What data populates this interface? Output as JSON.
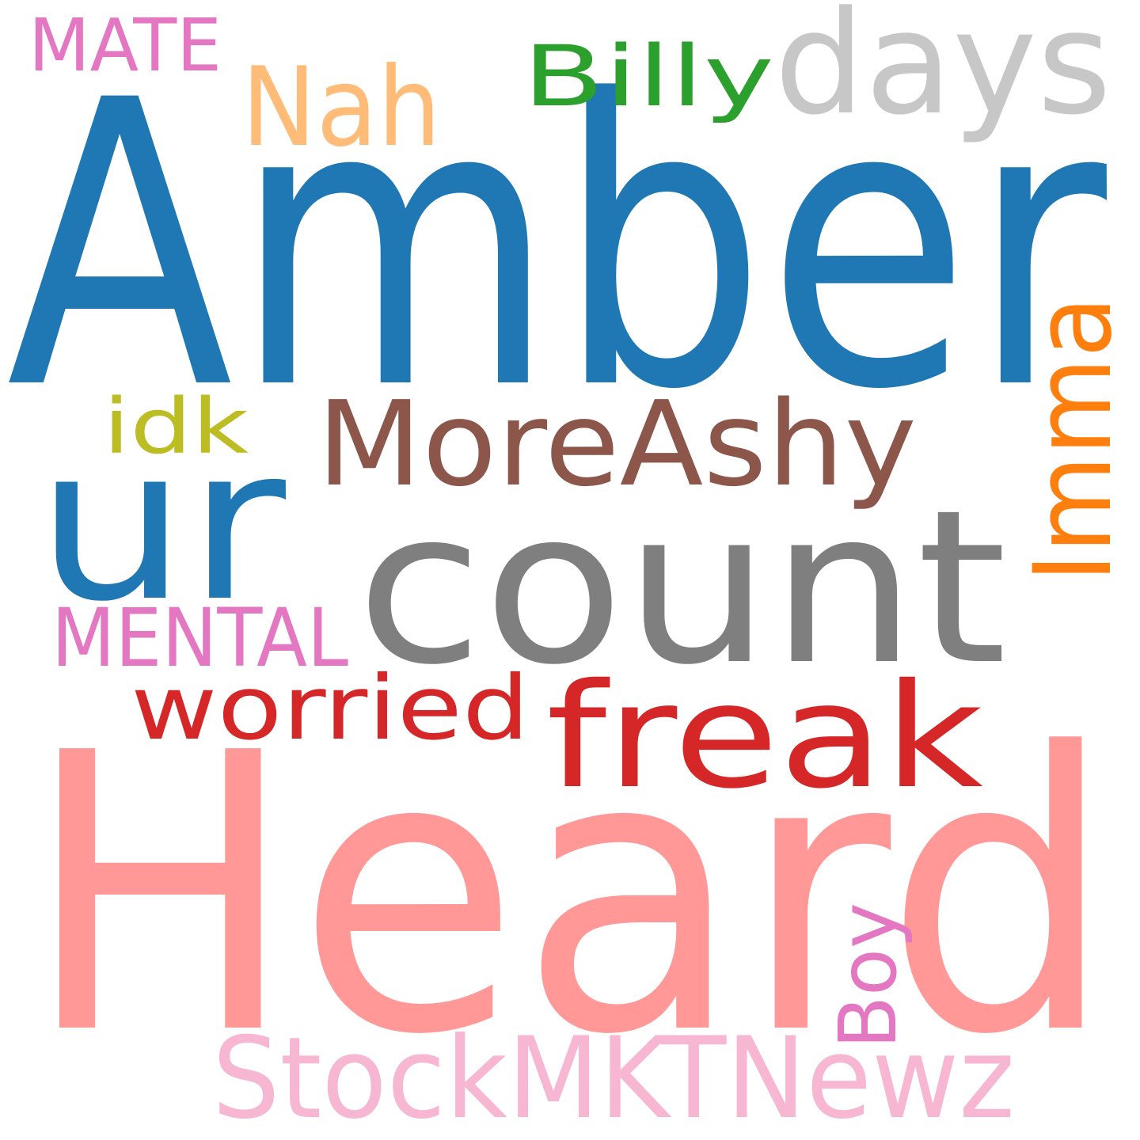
{
  "words": [
    {
      "text": "Amber",
      "color": "#1f77b4"
    },
    {
      "text": "Heard",
      "color": "#ff9896"
    },
    {
      "text": "count",
      "color": "#7f7f7f"
    },
    {
      "text": "ur",
      "color": "#1f77b4"
    },
    {
      "text": "days",
      "color": "#c7c7c7"
    },
    {
      "text": "freak",
      "color": "#d62728"
    },
    {
      "text": "MoreAshy",
      "color": "#8c564b"
    },
    {
      "text": "StockMKTNewz",
      "color": "#f7b6d2"
    },
    {
      "text": "Nah",
      "color": "#ffbb78"
    },
    {
      "text": "Imma",
      "color": "#ff7f0e"
    },
    {
      "text": "worried",
      "color": "#d62728"
    },
    {
      "text": "Billy",
      "color": "#2ca02c"
    },
    {
      "text": "MENTAL",
      "color": "#e377c2"
    },
    {
      "text": "Boy",
      "color": "#e377c2"
    },
    {
      "text": "idk",
      "color": "#bcbd22"
    },
    {
      "text": "MATE",
      "color": "#e377c2"
    }
  ]
}
